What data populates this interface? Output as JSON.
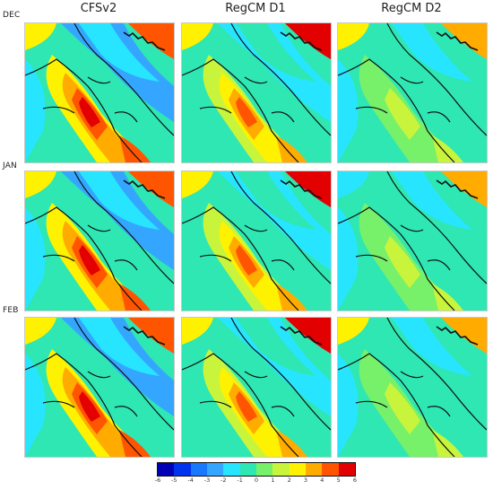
{
  "columns": [
    "CFSv2",
    "RegCM D1",
    "RegCM D2"
  ],
  "rows": [
    "DEC",
    "JAN",
    "FEB"
  ],
  "colorbar": {
    "ticks": [
      "-6",
      "-5",
      "-4",
      "-3",
      "-2",
      "-1",
      "0",
      "1",
      "2",
      "3",
      "4",
      "5",
      "6"
    ],
    "colors": [
      "#0000b4",
      "#0033ee",
      "#1a78ff",
      "#34a6ff",
      "#27e5ff",
      "#2ee7b3",
      "#77f06a",
      "#c8f53c",
      "#fff200",
      "#ffab00",
      "#ff5500",
      "#e30000"
    ]
  }
}
